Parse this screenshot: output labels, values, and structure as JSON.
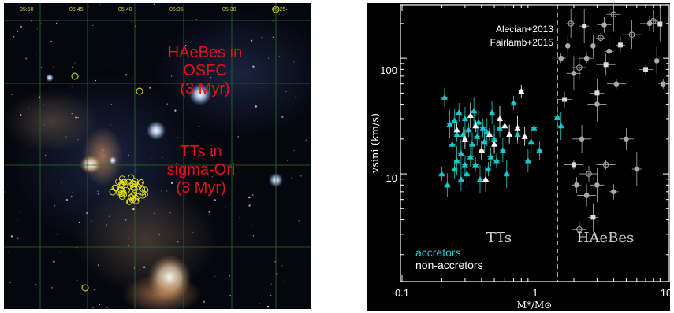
{
  "sky_image": {
    "ra_ticks": [
      "05:50",
      "05:45",
      "05:40",
      "05:35",
      "05:30",
      "05:25"
    ],
    "labels": {
      "haebes": "HAeBes in OSFC\n(3 Myr)",
      "tts": "TTs in\nsigma-Ori\n(3 Myr)"
    },
    "colors": {
      "grid": "#2f6a2a",
      "marker": "#e6e21a",
      "label": "#e3121b",
      "tick": "#d8d24a"
    }
  },
  "chart_data": {
    "type": "scatter",
    "title": "",
    "xlabel": "M*/M⊙",
    "ylabel": "vsini (km/s)",
    "xscale": "log",
    "yscale": "log",
    "xlim": [
      0.1,
      10
    ],
    "ylim": [
      1,
      300
    ],
    "x_ticks": [
      "0.1",
      "1",
      "10"
    ],
    "y_ticks": [
      "10",
      "100"
    ],
    "grid": false,
    "divider_x": 1.5,
    "region_labels": {
      "left": "TTs",
      "right": "HAeBes"
    },
    "references": [
      "Alecian+2013",
      "Fairlamb+2015"
    ],
    "legend": {
      "accretors": "accretors",
      "non_accretors": "non-accretors",
      "placement": "bottom-left"
    },
    "colors": {
      "accretors": "#17c9c9",
      "non_accretors": "#ffffff",
      "haebes": "#aaaaaa",
      "axes": "#ffffff"
    },
    "series": [
      {
        "name": "accretors",
        "x": [
          0.2,
          0.21,
          0.22,
          0.23,
          0.24,
          0.25,
          0.25,
          0.26,
          0.26,
          0.27,
          0.28,
          0.28,
          0.29,
          0.3,
          0.3,
          0.31,
          0.32,
          0.33,
          0.34,
          0.35,
          0.36,
          0.37,
          0.38,
          0.39,
          0.4,
          0.41,
          0.42,
          0.44,
          0.45,
          0.47,
          0.48,
          0.5,
          0.52,
          0.55,
          0.58,
          0.62,
          0.7,
          0.75,
          0.9,
          0.95,
          1.0,
          1.1,
          1.5,
          1.6
        ],
        "y": [
          10,
          46,
          8,
          27,
          18,
          11,
          29,
          13,
          22,
          34,
          9,
          15,
          22,
          12,
          30,
          10,
          24,
          14,
          18,
          35,
          12,
          21,
          28,
          9,
          16,
          25,
          19,
          23,
          11,
          14,
          34,
          20,
          13,
          25,
          16,
          10,
          41,
          22,
          13,
          19,
          25,
          16,
          31,
          26
        ]
      },
      {
        "name": "non-accretors",
        "x": [
          0.26,
          0.3,
          0.33,
          0.36,
          0.4,
          0.43,
          0.46,
          0.5,
          0.55,
          0.6,
          0.65,
          0.75,
          0.8,
          0.85
        ],
        "y": [
          24,
          20,
          32,
          26,
          16,
          9,
          22,
          18,
          30,
          26,
          22,
          25,
          52,
          21
        ]
      },
      {
        "name": "HAeBes",
        "x": [
          1.6,
          1.7,
          1.8,
          1.9,
          2.0,
          2.0,
          2.1,
          2.2,
          2.3,
          2.4,
          2.5,
          2.6,
          2.8,
          3.0,
          3.0,
          3.2,
          3.4,
          3.5,
          3.7,
          4.0,
          4.2,
          4.5,
          5.0,
          5.5,
          6.0,
          7.0,
          7.5,
          8.0,
          8.5,
          9.0,
          9.5,
          2.2,
          2.5,
          2.8,
          3.0,
          3.5,
          4.0
        ],
        "y": [
          100,
          44,
          128,
          200,
          74,
          12,
          8,
          83,
          20,
          190,
          100,
          10,
          128,
          50,
          40,
          150,
          195,
          88,
          115,
          240,
          60,
          130,
          20,
          160,
          11,
          80,
          200,
          210,
          95,
          198,
          60,
          3.3,
          6.5,
          4.2,
          8,
          12,
          7
        ]
      }
    ]
  }
}
